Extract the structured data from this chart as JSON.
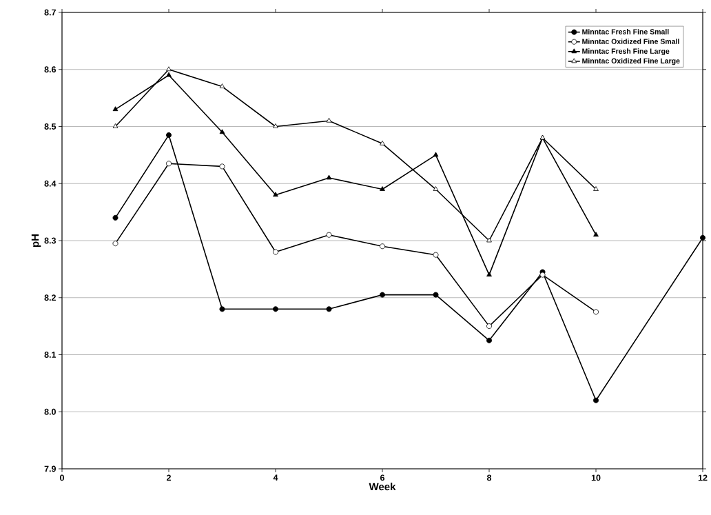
{
  "chart_data": {
    "type": "line",
    "xlabel": "Week",
    "ylabel": "pH",
    "xlim": [
      0,
      12
    ],
    "ylim": [
      7.9,
      8.7
    ],
    "xticks": [
      0,
      2,
      4,
      6,
      8,
      10,
      12
    ],
    "yticks": [
      {
        "value": 7.9,
        "label": "7.9"
      },
      {
        "value": 8.0,
        "label": "8.0"
      },
      {
        "value": 8.1,
        "label": "8.1"
      },
      {
        "value": 8.2,
        "label": "8.2"
      },
      {
        "value": 8.3,
        "label": "8.3"
      },
      {
        "value": 8.4,
        "label": "8.4"
      },
      {
        "value": 8.5,
        "label": "8.5"
      },
      {
        "value": 8.6,
        "label": "8.6"
      },
      {
        "value": 8.7,
        "label": "8.7"
      }
    ],
    "grid": "y",
    "legend": "top right",
    "line_style": "solid",
    "series": [
      {
        "name": "Minntac Fresh Fine Small",
        "color": "#000000",
        "marker": "circle",
        "x": [
          1,
          2,
          3,
          4,
          5,
          6,
          7,
          8,
          9,
          10,
          12
        ],
        "values": [
          8.34,
          8.485,
          8.18,
          8.18,
          8.18,
          8.205,
          8.205,
          8.125,
          8.245,
          8.02,
          8.305
        ]
      },
      {
        "name": "Minntac Oxidized Fine Small",
        "color": "#ffffff",
        "marker": "circle",
        "x": [
          1,
          2,
          3,
          4,
          5,
          6,
          7,
          8,
          9,
          10
        ],
        "values": [
          8.295,
          8.435,
          8.43,
          8.28,
          8.31,
          8.29,
          8.275,
          8.15,
          8.24,
          8.175
        ]
      },
      {
        "name": "Minntac Fresh Fine Large",
        "color": "#000000",
        "marker": "triangle",
        "x": [
          1,
          2,
          3,
          4,
          5,
          6,
          7,
          8,
          9,
          10
        ],
        "values": [
          8.53,
          8.59,
          8.49,
          8.38,
          8.41,
          8.39,
          8.45,
          8.24,
          8.48,
          8.31
        ]
      },
      {
        "name": "Minntac Oxidized Fine Large",
        "color": "#ffffff",
        "marker": "triangle",
        "x": [
          1,
          2,
          3,
          4,
          5,
          6,
          7,
          8,
          9,
          10
        ],
        "values": [
          8.5,
          8.6,
          8.57,
          8.5,
          8.51,
          8.47,
          8.39,
          8.3,
          8.48,
          8.39
        ]
      }
    ]
  }
}
